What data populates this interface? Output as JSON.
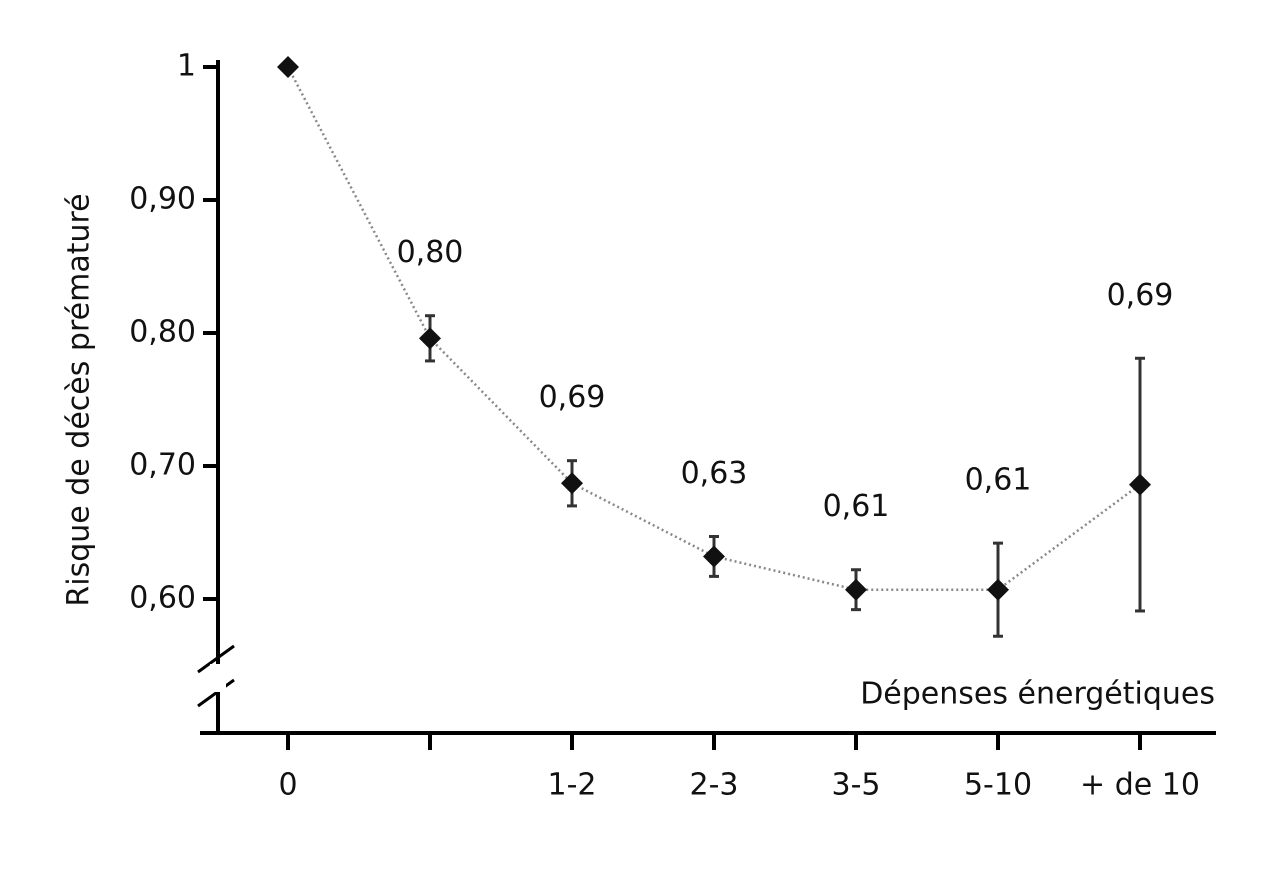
{
  "chart_data": {
    "type": "line",
    "y_label": "Risque de décès prématuré",
    "x_label": "Dépenses énergétiques",
    "categories": [
      "0",
      null,
      "1-2",
      "2-3",
      "3-5",
      "5-10",
      "+ de 10"
    ],
    "values": [
      1,
      0.796,
      0.687,
      0.632,
      0.607,
      0.607,
      0.686
    ],
    "errors": [
      null,
      0.017,
      0.017,
      0.015,
      0.015,
      0.035,
      0.095
    ],
    "value_labels": [
      null,
      "0,80",
      "0,69",
      "0,63",
      "0,61",
      "0,61",
      "0,69"
    ],
    "color": "#111111",
    "ylim": [
      0.5,
      1
    ],
    "yticks": [
      {
        "value": 0.6,
        "label": "0,60"
      },
      {
        "value": 0.7,
        "label": "0,70"
      },
      {
        "value": 0.8,
        "label": "0,80"
      },
      {
        "value": 0.9,
        "label": "0,90"
      },
      1
    ]
  }
}
